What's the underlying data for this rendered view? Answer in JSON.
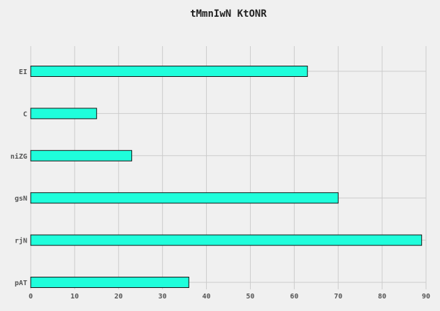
{
  "chart_data": {
    "type": "bar",
    "orientation": "horizontal",
    "title": "tMmnIwN  KtONR",
    "xlabel": "",
    "ylabel": "",
    "categories": [
      "EI",
      "C",
      "niZG",
      "gsN",
      "rjN",
      "pAT"
    ],
    "values": [
      63,
      15,
      23,
      70,
      89,
      36
    ],
    "xlim": [
      0,
      90
    ],
    "xticks": [
      0,
      10,
      20,
      30,
      40,
      50,
      60,
      70,
      80,
      90
    ],
    "grid": true,
    "legend": "none",
    "colors": {
      "bar_fill": "#1ffedb",
      "bar_edge": "#111111",
      "background": "#f0f0f0",
      "grid": "#cbcbcb",
      "text": "#555555"
    }
  }
}
